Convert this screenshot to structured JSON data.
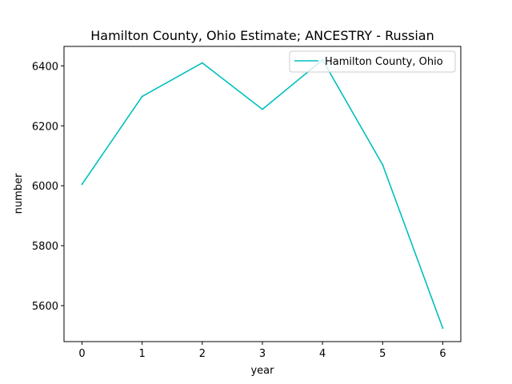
{
  "chart_data": {
    "type": "line",
    "title": "Hamilton County, Ohio Estimate; ANCESTRY - Russian",
    "xlabel": "year",
    "ylabel": "number",
    "x": [
      0,
      1,
      2,
      3,
      4,
      5,
      6
    ],
    "series": [
      {
        "name": "Hamilton County, Ohio",
        "color": "#00bfbf",
        "values": [
          6005,
          6298,
          6410,
          6255,
          6420,
          6070,
          5525
        ]
      }
    ],
    "xticks": [
      "0",
      "1",
      "2",
      "3",
      "4",
      "5",
      "6"
    ],
    "yticks": [
      "5600",
      "5800",
      "6000",
      "6200",
      "6400"
    ],
    "xlim": [
      -0.3,
      6.3
    ],
    "ylim": [
      5480,
      6465
    ],
    "grid": false,
    "legend": "upper right"
  }
}
